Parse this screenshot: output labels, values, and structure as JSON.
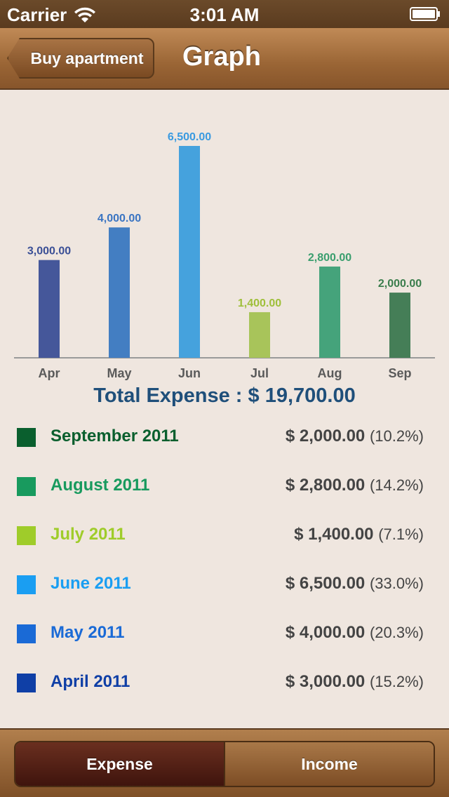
{
  "status_bar": {
    "carrier": "Carrier",
    "time": "3:01 AM",
    "icons": [
      "wifi-icon",
      "battery-icon"
    ]
  },
  "nav": {
    "back_label": "Buy apartment",
    "title": "Graph"
  },
  "chart_data": {
    "type": "bar",
    "categories": [
      "Apr",
      "May",
      "Jun",
      "Jul",
      "Aug",
      "Sep"
    ],
    "values": [
      3000,
      4000,
      6500,
      1400,
      2800,
      2000
    ],
    "value_labels": [
      "3,000.00",
      "4,000.00",
      "6,500.00",
      "1,400.00",
      "2,800.00",
      "2,000.00"
    ],
    "colors": [
      "#45579a",
      "#437ec2",
      "#45a2dd",
      "#a8c45a",
      "#45a37b",
      "#457e57"
    ],
    "label_colors": [
      "#3a4f96",
      "#3a74c2",
      "#3a9ae0",
      "#9fbf3a",
      "#3a9e6e",
      "#3a7d4c"
    ],
    "title": "",
    "xlabel": "",
    "ylabel": "",
    "ylim": [
      0,
      6500
    ],
    "grid": false
  },
  "total": {
    "text": "Total Expense : $ 19,700.00"
  },
  "legend": {
    "items": [
      {
        "month": "September 2011",
        "amount": "$ 2,000.00",
        "pct": "(10.2%)",
        "color": "#0a5f2e"
      },
      {
        "month": "August 2011",
        "amount": "$ 2,800.00",
        "pct": "(14.2%)",
        "color": "#189a5e"
      },
      {
        "month": "July 2011",
        "amount": "$ 1,400.00",
        "pct": "(7.1%)",
        "color": "#9fcc2a"
      },
      {
        "month": "June 2011",
        "amount": "$ 6,500.00",
        "pct": "(33.0%)",
        "color": "#1a9ef2"
      },
      {
        "month": "May 2011",
        "amount": "$ 4,000.00",
        "pct": "(20.3%)",
        "color": "#1a6ad6"
      },
      {
        "month": "April 2011",
        "amount": "$ 3,000.00",
        "pct": "(15.2%)",
        "color": "#0f3fa6"
      }
    ]
  },
  "segments": {
    "expense": "Expense",
    "income": "Income"
  }
}
